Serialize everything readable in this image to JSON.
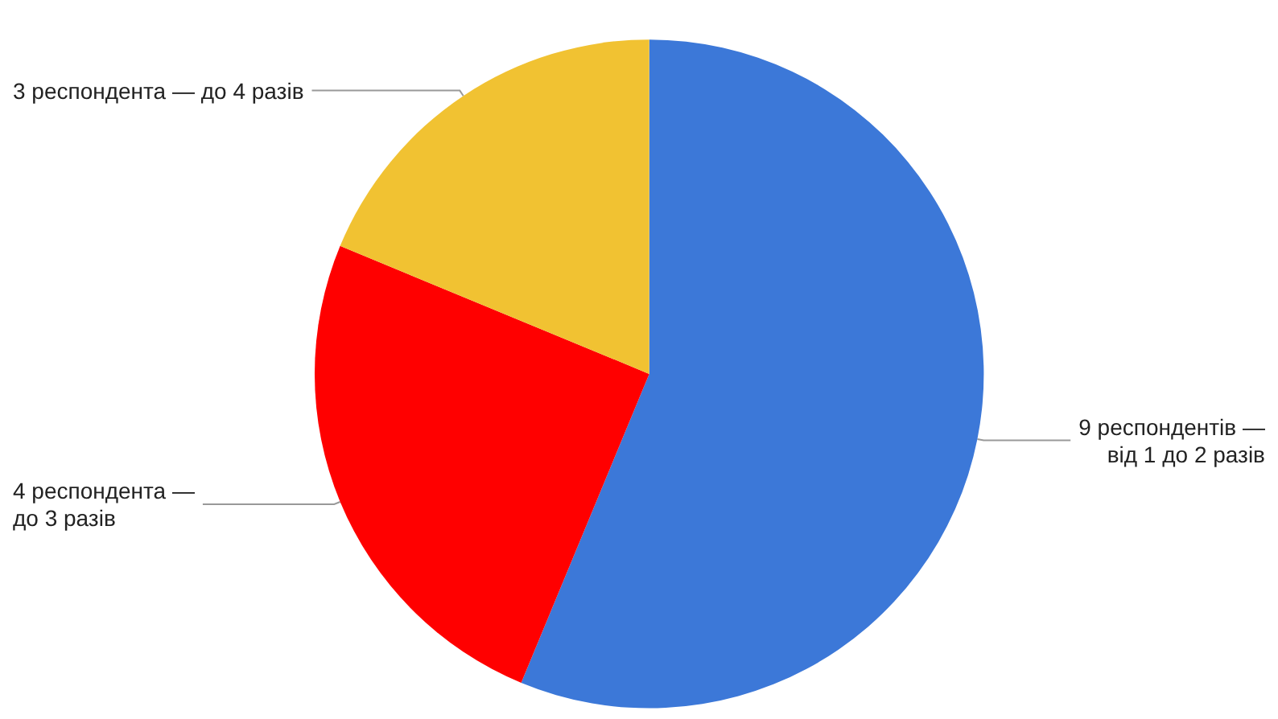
{
  "chart_data": {
    "type": "pie",
    "categories": [
      "9 респондентів —\nвід 1 до 2 разів",
      "4 респондента —\nдо 3 разів",
      "3 респондента — до 4 разів"
    ],
    "values": [
      9,
      4,
      3
    ],
    "colors": [
      "#3c78d8",
      "#ff0000",
      "#f1c232"
    ],
    "legend": false
  }
}
